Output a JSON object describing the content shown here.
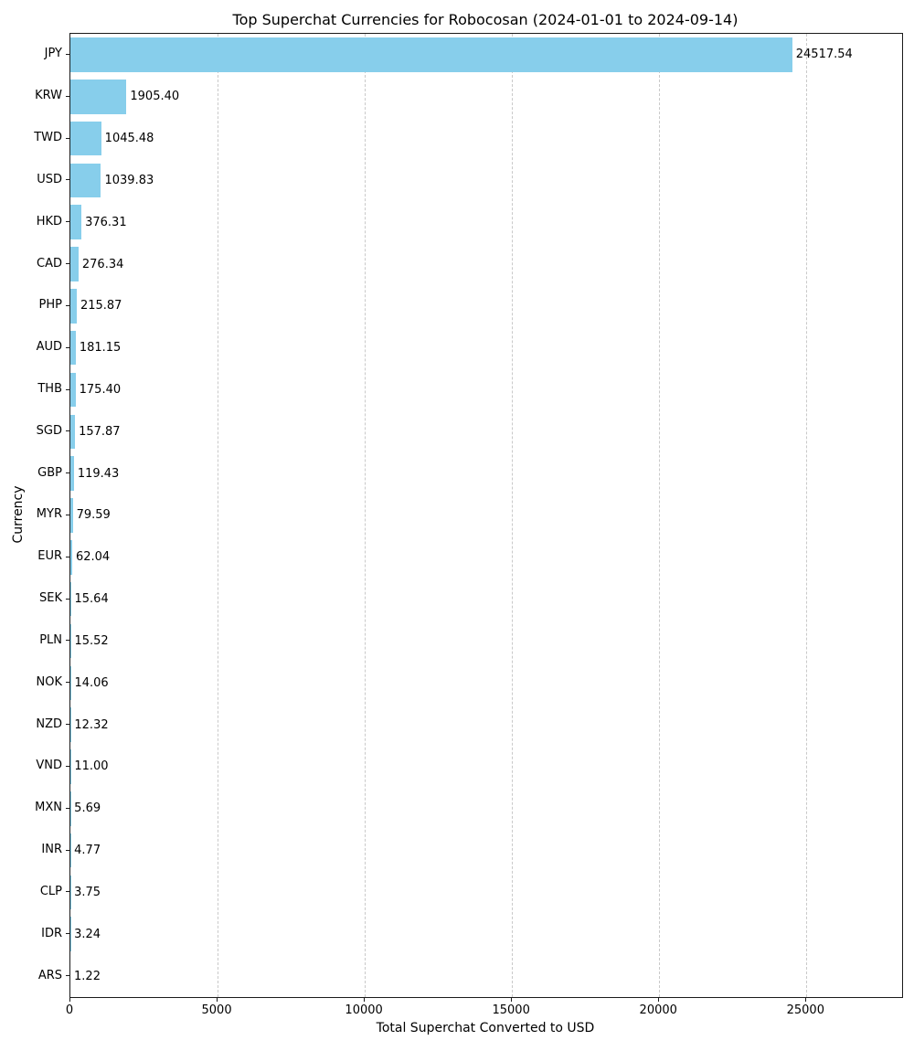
{
  "chart_data": {
    "type": "bar",
    "orientation": "horizontal",
    "title": "Top Superchat Currencies for Robocosan (2024-01-01 to 2024-09-14)",
    "xlabel": "Total Superchat Converted to USD",
    "ylabel": "Currency",
    "categories": [
      "JPY",
      "KRW",
      "TWD",
      "USD",
      "HKD",
      "CAD",
      "PHP",
      "AUD",
      "THB",
      "SGD",
      "GBP",
      "MYR",
      "EUR",
      "SEK",
      "PLN",
      "NOK",
      "NZD",
      "VND",
      "MXN",
      "INR",
      "CLP",
      "IDR",
      "ARS"
    ],
    "values": [
      24517.54,
      1905.4,
      1045.48,
      1039.83,
      376.31,
      276.34,
      215.87,
      181.15,
      175.4,
      157.87,
      119.43,
      79.59,
      62.04,
      15.64,
      15.52,
      14.06,
      12.32,
      11.0,
      5.69,
      4.77,
      3.75,
      3.24,
      1.22
    ],
    "value_labels": [
      "24517.54",
      "1905.40",
      "1045.48",
      "1039.83",
      "376.31",
      "276.34",
      "215.87",
      "181.15",
      "175.40",
      "157.87",
      "119.43",
      "79.59",
      "62.04",
      "15.64",
      "15.52",
      "14.06",
      "12.32",
      "11.00",
      "5.69",
      "4.77",
      "3.75",
      "3.24",
      "1.22"
    ],
    "xticks": [
      0,
      5000,
      10000,
      15000,
      20000,
      25000
    ],
    "xlim": [
      0,
      28250
    ],
    "grid": "vertical-dashed",
    "bar_color": "#87CEEB",
    "grid_color": "#c9c9c9",
    "text_color": "#000000"
  }
}
